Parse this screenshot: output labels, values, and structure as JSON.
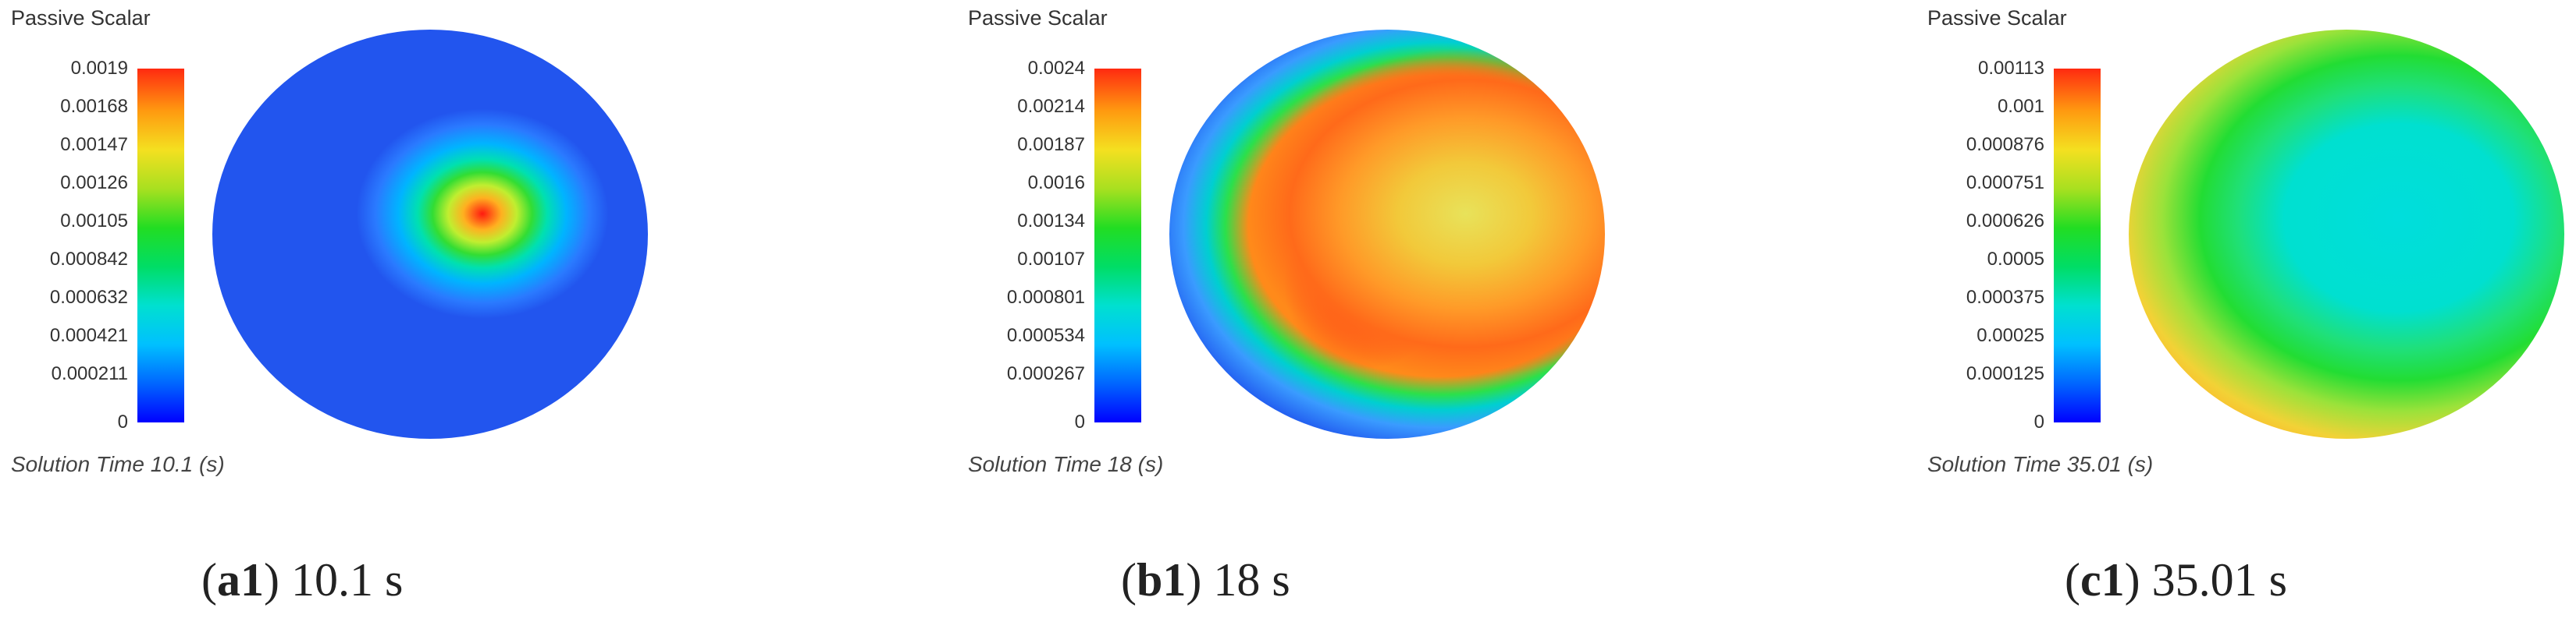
{
  "panels": [
    {
      "title": "Passive Scalar",
      "ticks": [
        "0.0019",
        "0.00168",
        "0.00147",
        "0.00126",
        "0.00105",
        "0.000842",
        "0.000632",
        "0.000421",
        "0.000211",
        "0"
      ],
      "solution_time": "Solution Time 10.1 (s)",
      "caption_label": "a1",
      "caption_time": " 10.1 s"
    },
    {
      "title": "Passive Scalar",
      "ticks": [
        "0.0024",
        "0.00214",
        "0.00187",
        "0.0016",
        "0.00134",
        "0.00107",
        "0.000801",
        "0.000534",
        "0.000267",
        "0"
      ],
      "solution_time": "Solution Time 18 (s)",
      "caption_label": "b1",
      "caption_time": " 18 s"
    },
    {
      "title": "Passive Scalar",
      "ticks": [
        "0.00113",
        "0.001",
        "0.000876",
        "0.000751",
        "0.000626",
        "0.0005",
        "0.000375",
        "0.00025",
        "0.000125",
        "0"
      ],
      "solution_time": "Solution Time 35.01 (s)",
      "caption_label": "c1",
      "caption_time": " 35.01 s"
    }
  ]
}
